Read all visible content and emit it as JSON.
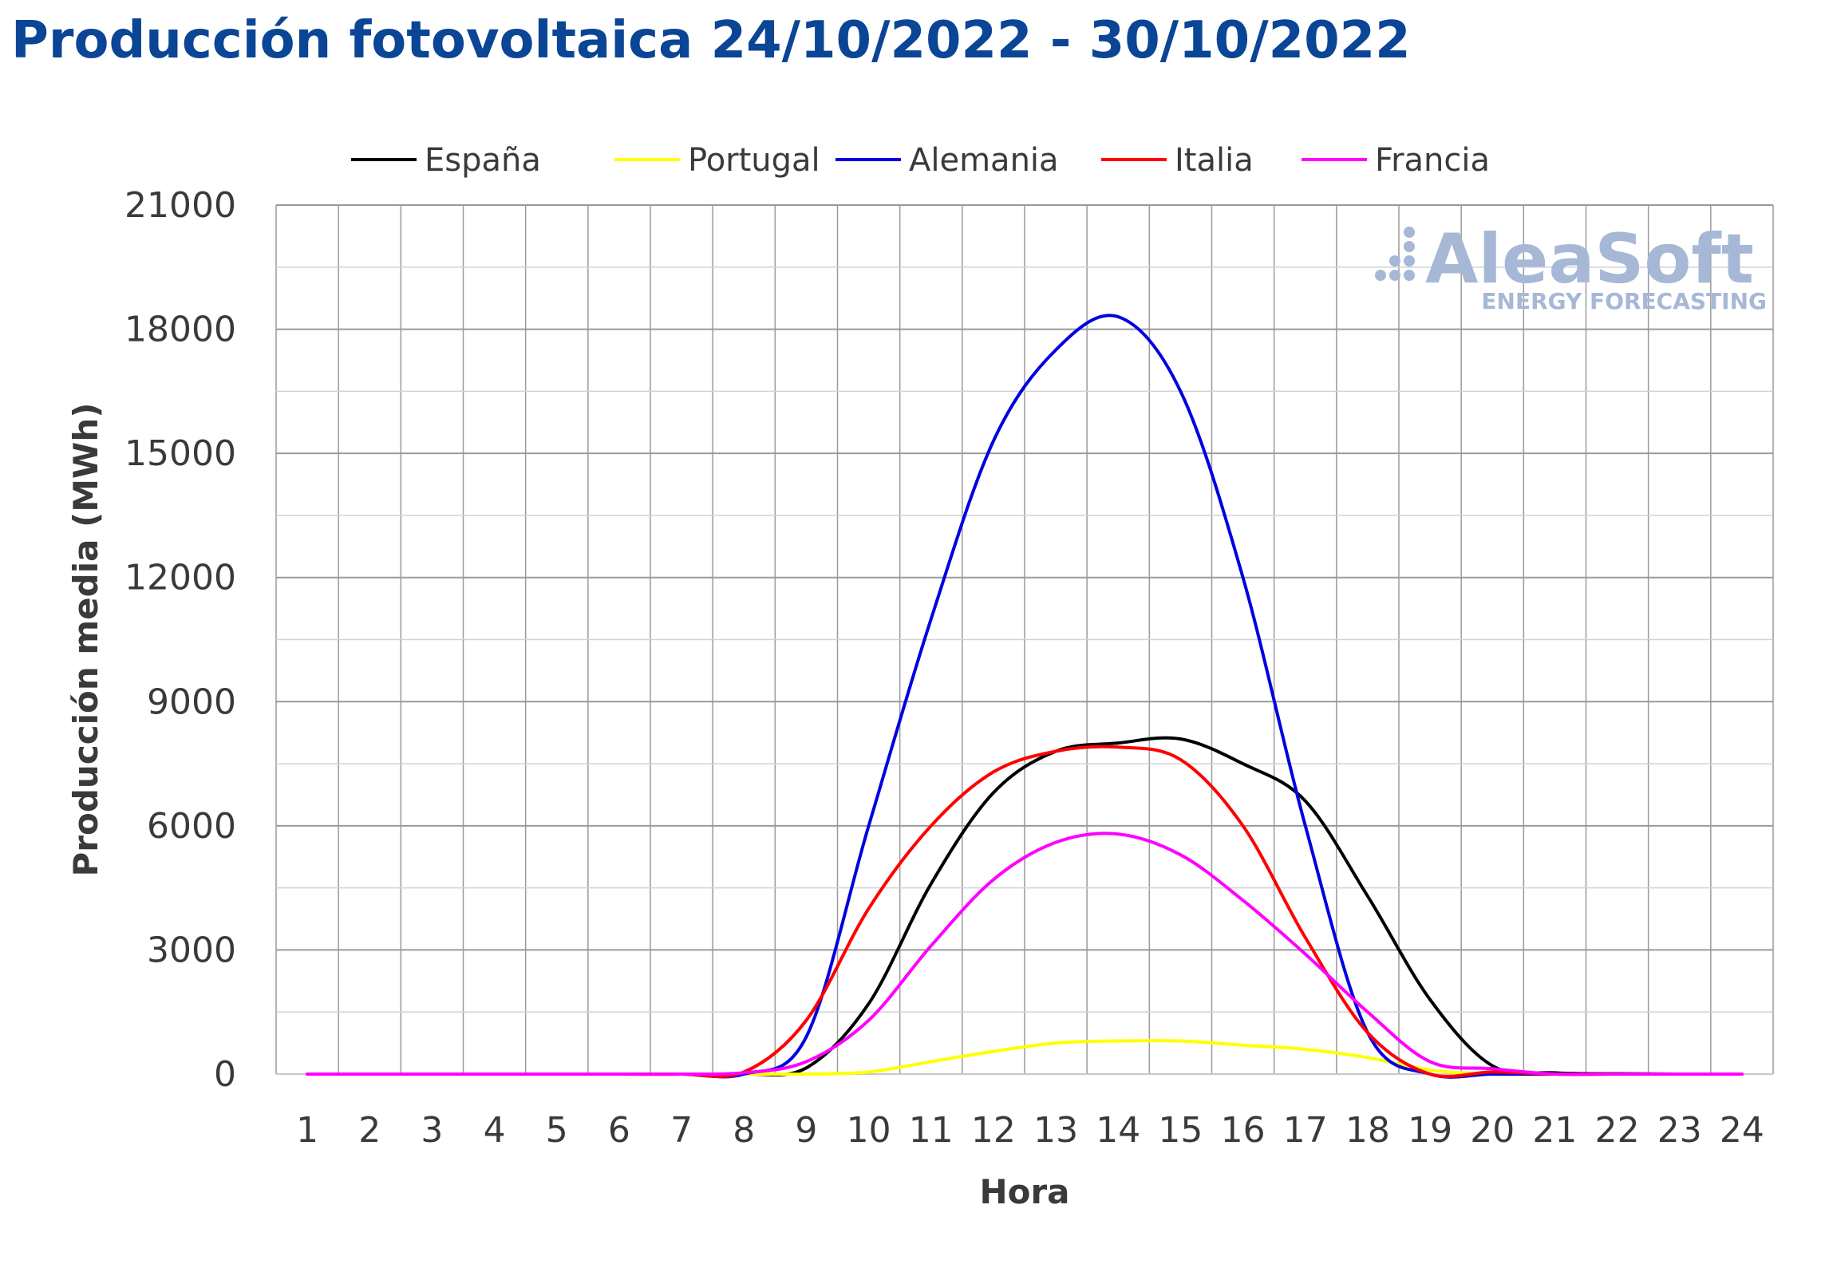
{
  "chart_data": {
    "type": "line",
    "title": "Producción fotovoltaica 24/10/2022 - 30/10/2022",
    "xlabel": "Hora",
    "ylabel": "Producción media (MWh)",
    "x": [
      1,
      2,
      3,
      4,
      5,
      6,
      7,
      8,
      9,
      10,
      11,
      12,
      13,
      14,
      15,
      16,
      17,
      18,
      19,
      20,
      21,
      22,
      23,
      24
    ],
    "ylim": [
      0,
      21000
    ],
    "yticks": [
      0,
      3000,
      6000,
      9000,
      12000,
      15000,
      18000,
      21000
    ],
    "grid": true,
    "legend_position": "top",
    "series": [
      {
        "name": "España",
        "color": "#000000",
        "values": [
          0,
          0,
          0,
          0,
          0,
          0,
          0,
          0,
          150,
          1700,
          4600,
          6800,
          7800,
          8000,
          8100,
          7500,
          6600,
          4300,
          1800,
          200,
          30,
          10,
          0,
          0
        ]
      },
      {
        "name": "Portugal",
        "color": "#ffff00",
        "values": [
          0,
          0,
          0,
          0,
          0,
          0,
          0,
          0,
          0,
          50,
          300,
          550,
          750,
          800,
          800,
          700,
          600,
          400,
          100,
          0,
          0,
          0,
          0,
          0
        ]
      },
      {
        "name": "Alemania",
        "color": "#0000e0",
        "values": [
          0,
          0,
          0,
          0,
          0,
          0,
          0,
          0,
          900,
          6000,
          11000,
          15300,
          17500,
          18300,
          16500,
          12000,
          6000,
          1000,
          0,
          0,
          0,
          0,
          0,
          0
        ]
      },
      {
        "name": "Italia",
        "color": "#ff0000",
        "values": [
          0,
          0,
          0,
          0,
          0,
          0,
          0,
          50,
          1300,
          4000,
          6000,
          7300,
          7800,
          7900,
          7600,
          6000,
          3300,
          1000,
          0,
          50,
          0,
          0,
          0,
          0
        ]
      },
      {
        "name": "Francia",
        "color": "#ff00ff",
        "values": [
          0,
          0,
          0,
          0,
          0,
          0,
          0,
          30,
          300,
          1300,
          3100,
          4700,
          5600,
          5800,
          5300,
          4200,
          2900,
          1500,
          300,
          130,
          0,
          0,
          0,
          0
        ]
      }
    ]
  },
  "watermark": {
    "main": "AleaSoft",
    "sub": "ENERGY FORECASTING"
  }
}
